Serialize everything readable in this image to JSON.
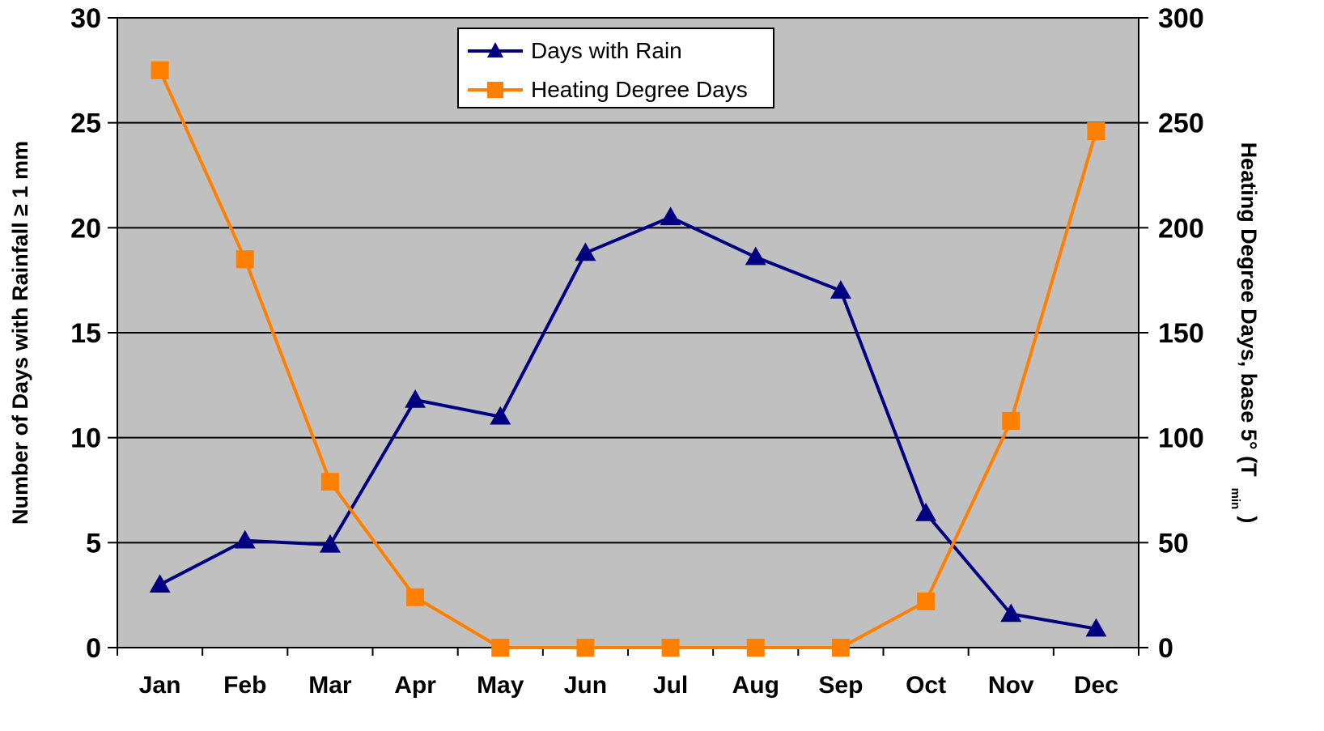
{
  "chart_data": {
    "type": "line",
    "categories": [
      "Jan",
      "Feb",
      "Mar",
      "Apr",
      "May",
      "Jun",
      "Jul",
      "Aug",
      "Sep",
      "Oct",
      "Nov",
      "Dec"
    ],
    "series": [
      {
        "name": "Days with Rain",
        "axis": "left",
        "marker": "triangle",
        "color": "#000080",
        "values": [
          3.0,
          5.1,
          4.9,
          11.8,
          11.0,
          18.8,
          20.5,
          18.6,
          17.0,
          6.4,
          1.6,
          0.9
        ]
      },
      {
        "name": "Heating Degree Days",
        "axis": "right",
        "marker": "square",
        "color": "#FF8000",
        "values": [
          275,
          185,
          79,
          24,
          0,
          0,
          0,
          0,
          0,
          22,
          108,
          246
        ]
      }
    ],
    "ylabel": "Number of Days with Rainfall ≥ 1 mm",
    "y2label_main": "Heating Degree Days, base 5° (T",
    "y2label_sub": "min",
    "y2label_close": ")",
    "ylim": [
      0,
      30
    ],
    "y2lim": [
      0,
      300
    ],
    "yticks": [
      "0",
      "5",
      "10",
      "15",
      "20",
      "25",
      "30"
    ],
    "y2ticks": [
      "0",
      "50",
      "100",
      "150",
      "200",
      "250",
      "300"
    ],
    "grid": true,
    "legend_position": "top-center",
    "plot_background": "#C0C0C0"
  }
}
